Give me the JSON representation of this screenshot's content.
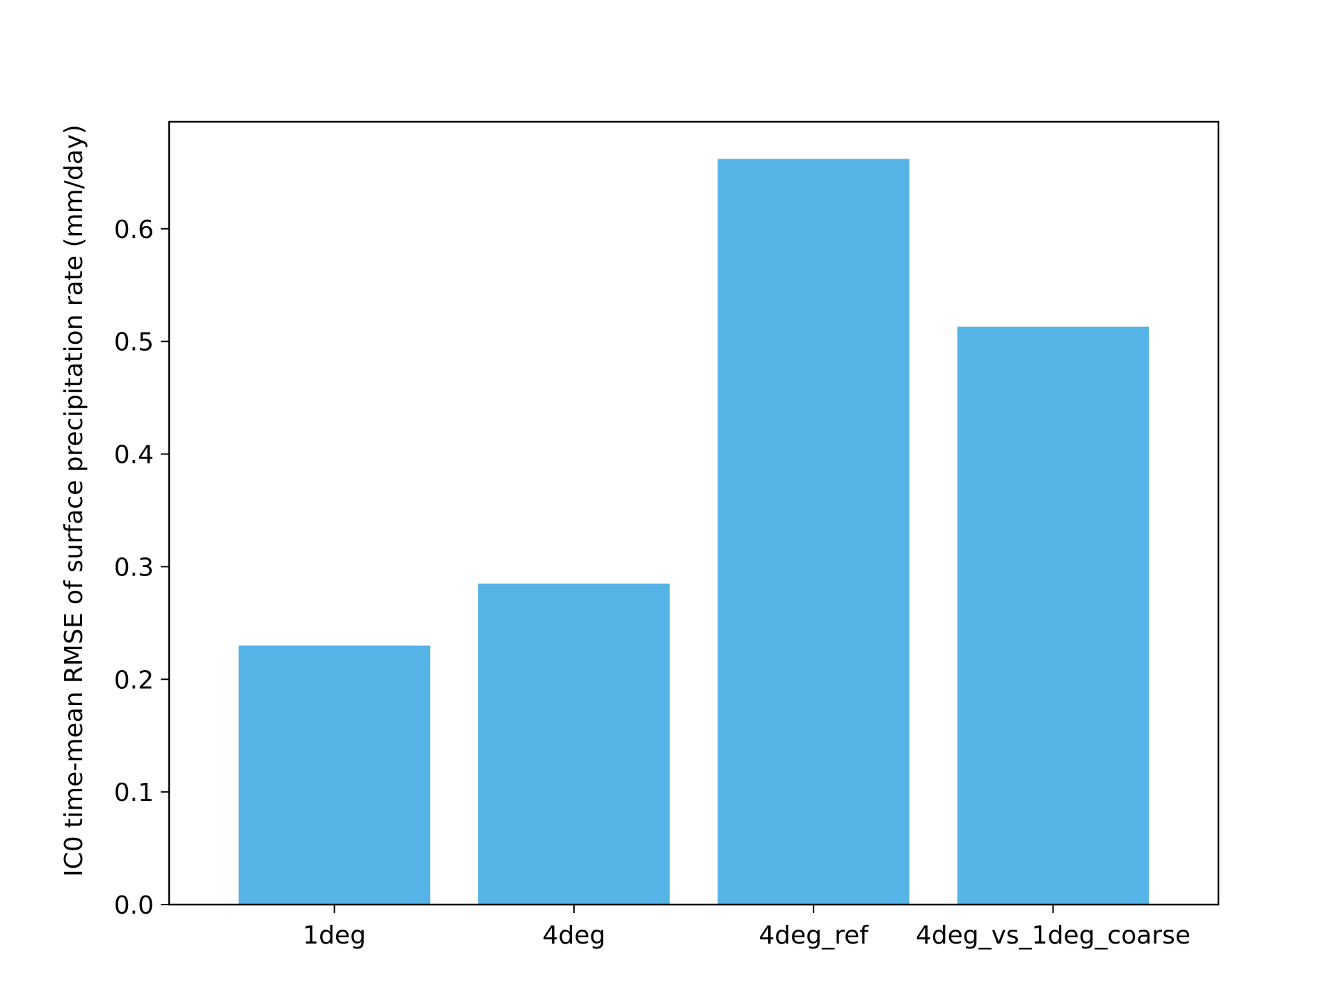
{
  "chart_data": {
    "type": "bar",
    "categories": [
      "1deg",
      "4deg",
      "4deg_ref",
      "4deg_vs_1deg_coarse"
    ],
    "values": [
      0.23,
      0.285,
      0.662,
      0.513
    ],
    "title": "",
    "xlabel": "",
    "ylabel": "IC0 time-mean RMSE of surface precipitation rate (mm/day)",
    "ylim": [
      0,
      0.695
    ],
    "yticks": [
      "0.0",
      "0.1",
      "0.2",
      "0.3",
      "0.4",
      "0.5",
      "0.6"
    ],
    "ytick_values": [
      0,
      0.1,
      0.2,
      0.3,
      0.4,
      0.5,
      0.6
    ],
    "bar_color": "#56b3e6",
    "grid": false,
    "legend": "none"
  }
}
